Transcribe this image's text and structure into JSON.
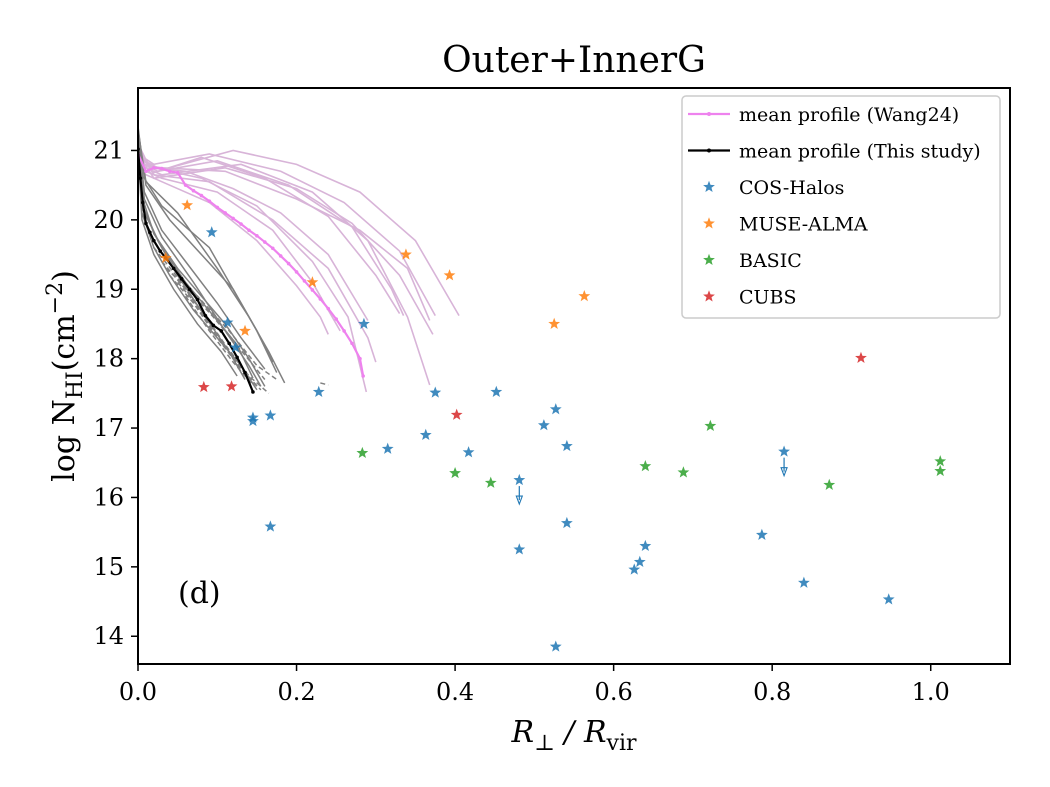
{
  "chart_data": {
    "type": "scatter",
    "title": "Outer+InnerG",
    "panel_label": "(d)",
    "xlabel": {
      "main": "R",
      "sub1": "⊥",
      "slash": " / R",
      "sub2": "vir"
    },
    "ylabel": {
      "main": "log N",
      "sub": "HI",
      "unit": "(cm",
      "sup": "−2",
      "close": ")"
    },
    "xlim": [
      0.0,
      1.1
    ],
    "ylim": [
      13.6,
      21.9
    ],
    "xticks": [
      0.0,
      0.2,
      0.4,
      0.6,
      0.8,
      1.0
    ],
    "xtick_labels": [
      "0.0",
      "0.2",
      "0.4",
      "0.6",
      "0.8",
      "1.0"
    ],
    "yticks": [
      14,
      15,
      16,
      17,
      18,
      19,
      20,
      21
    ],
    "ytick_labels": [
      "14",
      "15",
      "16",
      "17",
      "18",
      "19",
      "20",
      "21"
    ],
    "colors": {
      "cos_halos": "#1f77b4",
      "muse_alma": "#ff7f0e",
      "basic": "#2ca02c",
      "cubs": "#d62728",
      "wang24": "#ee82ee",
      "this_study": "#000000",
      "wang24_individual": "#d8b4d8",
      "this_individual": "#808080"
    },
    "legend": {
      "position": "upper right",
      "entries": [
        {
          "label": "mean profile (Wang24)",
          "key": "wang24",
          "kind": "line"
        },
        {
          "label": "mean profile (This study)",
          "key": "this_study",
          "kind": "line"
        },
        {
          "label": "COS-Halos",
          "key": "cos_halos",
          "kind": "star"
        },
        {
          "label": "MUSE-ALMA",
          "key": "muse_alma",
          "kind": "star"
        },
        {
          "label": "BASIC",
          "key": "basic",
          "kind": "star"
        },
        {
          "label": "CUBS",
          "key": "cubs",
          "kind": "star"
        }
      ]
    },
    "scatter_series": [
      {
        "name": "COS-Halos",
        "key": "cos_halos",
        "points": [
          [
            0.093,
            19.82
          ],
          [
            0.113,
            18.52
          ],
          [
            0.123,
            18.16
          ],
          [
            0.145,
            17.15
          ],
          [
            0.145,
            17.1
          ],
          [
            0.167,
            17.18
          ],
          [
            0.167,
            15.58
          ],
          [
            0.228,
            17.52
          ],
          [
            0.285,
            18.5
          ],
          [
            0.315,
            16.7
          ],
          [
            0.363,
            16.9
          ],
          [
            0.375,
            17.51
          ],
          [
            0.417,
            16.65
          ],
          [
            0.452,
            17.52
          ],
          [
            0.481,
            16.25
          ],
          [
            0.481,
            15.25
          ],
          [
            0.512,
            17.04
          ],
          [
            0.527,
            17.27
          ],
          [
            0.541,
            16.74
          ],
          [
            0.541,
            15.63
          ],
          [
            0.527,
            13.85
          ],
          [
            0.626,
            14.96
          ],
          [
            0.633,
            15.07
          ],
          [
            0.64,
            15.3
          ],
          [
            0.787,
            15.46
          ],
          [
            0.815,
            16.66
          ],
          [
            0.84,
            14.77
          ],
          [
            0.947,
            14.53
          ]
        ]
      },
      {
        "name": "MUSE-ALMA",
        "key": "muse_alma",
        "points": [
          [
            0.062,
            20.21
          ],
          [
            0.035,
            19.45
          ],
          [
            0.135,
            18.4
          ],
          [
            0.22,
            19.1
          ],
          [
            0.338,
            19.5
          ],
          [
            0.393,
            19.2
          ],
          [
            0.525,
            18.5
          ],
          [
            0.563,
            18.9
          ]
        ]
      },
      {
        "name": "BASIC",
        "key": "basic",
        "points": [
          [
            0.283,
            16.64
          ],
          [
            0.4,
            16.35
          ],
          [
            0.445,
            16.21
          ],
          [
            0.64,
            16.45
          ],
          [
            0.688,
            16.36
          ],
          [
            0.722,
            17.03
          ],
          [
            0.872,
            16.18
          ],
          [
            1.012,
            16.52
          ],
          [
            1.012,
            16.38
          ]
        ]
      },
      {
        "name": "CUBS",
        "key": "cubs",
        "points": [
          [
            0.083,
            17.59
          ],
          [
            0.118,
            17.6
          ],
          [
            0.402,
            17.19
          ],
          [
            0.912,
            18.01
          ]
        ]
      }
    ],
    "upper_limits": [
      {
        "series": "COS-Halos",
        "x": 0.481,
        "y": 16.25
      },
      {
        "series": "COS-Halos",
        "x": 0.815,
        "y": 16.66
      }
    ],
    "line_series": [
      {
        "name": "mean profile (Wang24)",
        "key": "wang24",
        "markers": true,
        "points": [
          [
            0.0,
            20.95
          ],
          [
            0.01,
            20.7
          ],
          [
            0.02,
            20.75
          ],
          [
            0.03,
            20.74
          ],
          [
            0.04,
            20.7
          ],
          [
            0.05,
            20.68
          ],
          [
            0.06,
            20.5
          ],
          [
            0.07,
            20.42
          ],
          [
            0.08,
            20.35
          ],
          [
            0.09,
            20.27
          ],
          [
            0.1,
            20.18
          ],
          [
            0.11,
            20.1
          ],
          [
            0.12,
            20.02
          ],
          [
            0.13,
            19.94
          ],
          [
            0.14,
            19.85
          ],
          [
            0.15,
            19.77
          ],
          [
            0.16,
            19.68
          ],
          [
            0.17,
            19.59
          ],
          [
            0.18,
            19.48
          ],
          [
            0.19,
            19.37
          ],
          [
            0.2,
            19.25
          ],
          [
            0.21,
            19.12
          ],
          [
            0.22,
            18.99
          ],
          [
            0.23,
            18.86
          ],
          [
            0.24,
            18.72
          ],
          [
            0.25,
            18.57
          ],
          [
            0.26,
            18.4
          ],
          [
            0.27,
            18.22
          ],
          [
            0.28,
            18.0
          ],
          [
            0.284,
            17.75
          ]
        ]
      },
      {
        "name": "mean profile (This study)",
        "key": "this_study",
        "markers": true,
        "points": [
          [
            0.0,
            21.02
          ],
          [
            0.003,
            20.6
          ],
          [
            0.006,
            20.25
          ],
          [
            0.01,
            19.95
          ],
          [
            0.015,
            19.82
          ],
          [
            0.02,
            19.7
          ],
          [
            0.028,
            19.55
          ],
          [
            0.035,
            19.45
          ],
          [
            0.045,
            19.3
          ],
          [
            0.055,
            19.15
          ],
          [
            0.065,
            19.0
          ],
          [
            0.075,
            18.85
          ],
          [
            0.085,
            18.62
          ],
          [
            0.095,
            18.48
          ],
          [
            0.105,
            18.4
          ],
          [
            0.115,
            18.22
          ],
          [
            0.125,
            18.02
          ],
          [
            0.135,
            17.8
          ],
          [
            0.145,
            17.52
          ]
        ]
      }
    ],
    "individual_profiles_wang24": [
      [
        [
          0.0,
          21.1
        ],
        [
          0.015,
          20.75
        ],
        [
          0.06,
          20.7
        ],
        [
          0.12,
          20.45
        ],
        [
          0.18,
          20.1
        ],
        [
          0.24,
          19.5
        ],
        [
          0.29,
          18.55
        ]
      ],
      [
        [
          0.0,
          21.05
        ],
        [
          0.02,
          20.68
        ],
        [
          0.08,
          20.9
        ],
        [
          0.16,
          20.6
        ],
        [
          0.24,
          20.05
        ],
        [
          0.3,
          19.2
        ],
        [
          0.33,
          18.65
        ]
      ],
      [
        [
          0.0,
          20.95
        ],
        [
          0.02,
          20.8
        ],
        [
          0.09,
          20.95
        ],
        [
          0.18,
          20.7
        ],
        [
          0.26,
          20.25
        ],
        [
          0.33,
          19.55
        ],
        [
          0.375,
          18.62
        ]
      ],
      [
        [
          0.0,
          20.85
        ],
        [
          0.025,
          20.7
        ],
        [
          0.1,
          20.85
        ],
        [
          0.19,
          20.5
        ],
        [
          0.27,
          19.9
        ],
        [
          0.32,
          19.0
        ],
        [
          0.335,
          18.62
        ]
      ],
      [
        [
          0.0,
          20.8
        ],
        [
          0.03,
          20.75
        ],
        [
          0.11,
          20.7
        ],
        [
          0.2,
          20.3
        ],
        [
          0.28,
          19.85
        ],
        [
          0.34,
          19.3
        ],
        [
          0.368,
          18.55
        ]
      ],
      [
        [
          0.0,
          21.0
        ],
        [
          0.02,
          20.65
        ],
        [
          0.09,
          20.55
        ],
        [
          0.17,
          20.0
        ],
        [
          0.24,
          19.3
        ],
        [
          0.29,
          18.3
        ],
        [
          0.3,
          17.95
        ]
      ],
      [
        [
          0.0,
          20.9
        ],
        [
          0.03,
          20.72
        ],
        [
          0.12,
          21.0
        ],
        [
          0.2,
          20.8
        ],
        [
          0.28,
          20.4
        ],
        [
          0.35,
          19.7
        ],
        [
          0.405,
          18.62
        ]
      ],
      [
        [
          0.0,
          20.75
        ],
        [
          0.03,
          20.6
        ],
        [
          0.1,
          20.4
        ],
        [
          0.17,
          19.85
        ],
        [
          0.22,
          19.1
        ],
        [
          0.255,
          18.4
        ]
      ],
      [
        [
          0.0,
          20.7
        ],
        [
          0.03,
          20.55
        ],
        [
          0.09,
          20.25
        ],
        [
          0.15,
          19.7
        ],
        [
          0.2,
          19.05
        ],
        [
          0.23,
          18.6
        ],
        [
          0.24,
          18.35
        ]
      ],
      [
        [
          0.0,
          20.95
        ],
        [
          0.02,
          20.6
        ],
        [
          0.11,
          20.75
        ],
        [
          0.2,
          20.45
        ],
        [
          0.27,
          19.95
        ],
        [
          0.33,
          19.2
        ],
        [
          0.372,
          18.35
        ]
      ],
      [
        [
          0.0,
          20.8
        ],
        [
          0.03,
          20.65
        ],
        [
          0.13,
          20.8
        ],
        [
          0.22,
          20.4
        ],
        [
          0.29,
          19.7
        ],
        [
          0.34,
          18.6
        ],
        [
          0.368,
          17.62
        ]
      ],
      [
        [
          0.0,
          20.9
        ],
        [
          0.02,
          20.75
        ],
        [
          0.08,
          20.6
        ],
        [
          0.15,
          20.2
        ],
        [
          0.22,
          19.4
        ],
        [
          0.265,
          18.6
        ],
        [
          0.288,
          17.52
        ]
      ]
    ],
    "individual_profiles_this_study": [
      [
        [
          0.0,
          21.35
        ],
        [
          0.008,
          20.6
        ],
        [
          0.03,
          20.2
        ],
        [
          0.06,
          19.9
        ],
        [
          0.09,
          19.6
        ],
        [
          0.12,
          19.0
        ],
        [
          0.15,
          18.4
        ],
        [
          0.17,
          17.95
        ]
      ],
      [
        [
          0.0,
          21.2
        ],
        [
          0.006,
          20.3
        ],
        [
          0.02,
          19.8
        ],
        [
          0.05,
          19.3
        ],
        [
          0.08,
          18.9
        ],
        [
          0.11,
          18.5
        ],
        [
          0.14,
          18.0
        ],
        [
          0.16,
          17.6
        ]
      ],
      [
        [
          0.0,
          21.3
        ],
        [
          0.01,
          20.5
        ],
        [
          0.04,
          20.0
        ],
        [
          0.08,
          19.5
        ],
        [
          0.12,
          19.0
        ],
        [
          0.15,
          18.4
        ],
        [
          0.175,
          17.8
        ]
      ],
      [
        [
          0.0,
          21.1
        ],
        [
          0.005,
          20.1
        ],
        [
          0.02,
          19.6
        ],
        [
          0.04,
          19.2
        ],
        [
          0.07,
          18.7
        ],
        [
          0.1,
          18.3
        ],
        [
          0.13,
          17.9
        ],
        [
          0.15,
          17.55
        ]
      ],
      [
        [
          0.0,
          21.25
        ],
        [
          0.008,
          20.4
        ],
        [
          0.03,
          19.85
        ],
        [
          0.06,
          19.4
        ],
        [
          0.1,
          18.8
        ],
        [
          0.13,
          18.3
        ],
        [
          0.16,
          17.85
        ]
      ],
      [
        [
          0.0,
          21.15
        ],
        [
          0.006,
          20.2
        ],
        [
          0.025,
          19.7
        ],
        [
          0.05,
          19.2
        ],
        [
          0.085,
          18.6
        ],
        [
          0.115,
          18.1
        ],
        [
          0.135,
          17.7
        ]
      ],
      [
        [
          0.0,
          21.05
        ],
        [
          0.005,
          20.0
        ],
        [
          0.02,
          19.5
        ],
        [
          0.045,
          19.0
        ],
        [
          0.075,
          18.5
        ],
        [
          0.105,
          18.1
        ],
        [
          0.125,
          17.75
        ]
      ],
      [
        [
          0.0,
          21.3
        ],
        [
          0.01,
          20.55
        ],
        [
          0.05,
          20.1
        ],
        [
          0.1,
          19.3
        ],
        [
          0.14,
          18.6
        ],
        [
          0.165,
          18.1
        ],
        [
          0.185,
          17.65
        ]
      ],
      [
        [
          0.0,
          21.2
        ],
        [
          0.008,
          20.3
        ],
        [
          0.03,
          19.75
        ],
        [
          0.07,
          19.1
        ],
        [
          0.11,
          18.4
        ],
        [
          0.14,
          17.9
        ],
        [
          0.155,
          17.6
        ]
      ],
      [
        [
          0.0,
          21.1
        ],
        [
          0.006,
          20.15
        ],
        [
          0.03,
          19.6
        ],
        [
          0.06,
          19.1
        ],
        [
          0.1,
          18.55
        ],
        [
          0.125,
          18.2
        ],
        [
          0.145,
          17.72
        ]
      ]
    ],
    "dashed_profiles_this_study": [
      [
        [
          0.03,
          19.4
        ],
        [
          0.06,
          19.0
        ],
        [
          0.09,
          18.5
        ],
        [
          0.12,
          18.0
        ],
        [
          0.15,
          17.6
        ]
      ],
      [
        [
          0.04,
          19.2
        ],
        [
          0.07,
          18.8
        ],
        [
          0.1,
          18.3
        ],
        [
          0.13,
          17.85
        ],
        [
          0.155,
          17.55
        ]
      ],
      [
        [
          0.05,
          19.1
        ],
        [
          0.08,
          18.7
        ],
        [
          0.11,
          18.2
        ],
        [
          0.14,
          17.75
        ],
        [
          0.165,
          17.5
        ]
      ],
      [
        [
          0.035,
          19.3
        ],
        [
          0.075,
          18.9
        ],
        [
          0.115,
          18.4
        ],
        [
          0.15,
          17.9
        ],
        [
          0.175,
          17.7
        ]
      ],
      [
        [
          0.02,
          19.6
        ],
        [
          0.055,
          19.1
        ],
        [
          0.095,
          18.6
        ],
        [
          0.135,
          18.05
        ],
        [
          0.16,
          17.7
        ]
      ],
      [
        [
          0.06,
          18.9
        ],
        [
          0.09,
          18.4
        ],
        [
          0.12,
          17.95
        ],
        [
          0.145,
          17.62
        ]
      ],
      [
        [
          0.23,
          17.65
        ],
        [
          0.24,
          17.62
        ]
      ]
    ]
  }
}
